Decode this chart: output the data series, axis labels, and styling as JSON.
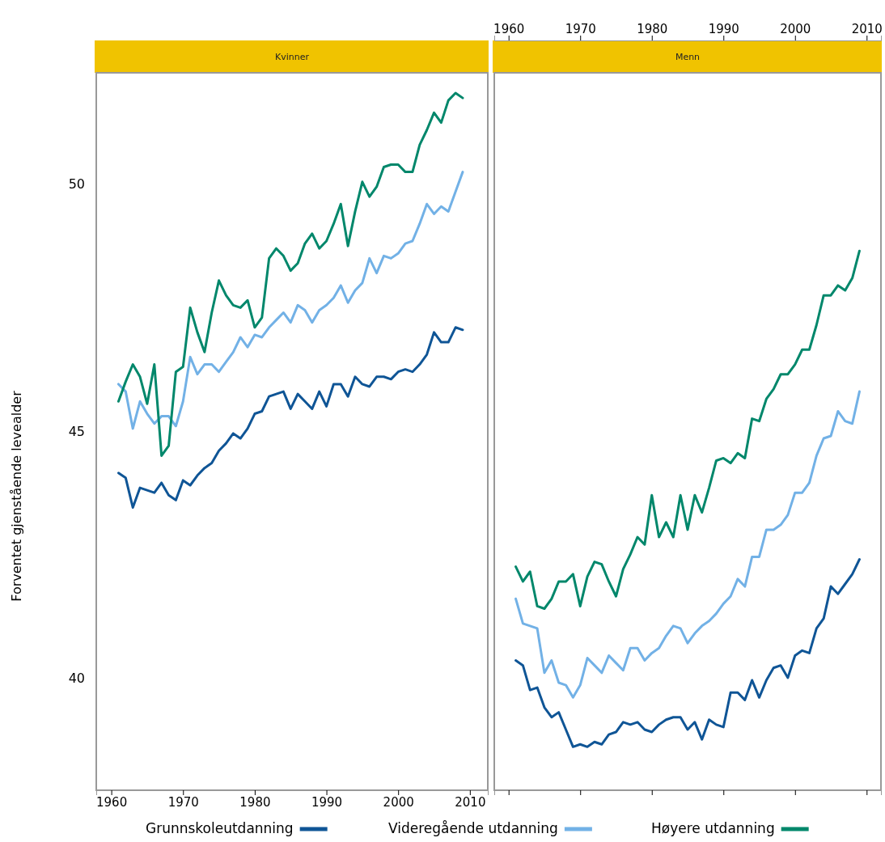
{
  "chart_data": [
    {
      "type": "line",
      "title": "Kvinner",
      "ylabel": "Forventet gjenstående levealder",
      "x": [
        1961,
        1962,
        1963,
        1964,
        1965,
        1966,
        1967,
        1968,
        1969,
        1970,
        1971,
        1972,
        1973,
        1974,
        1975,
        1976,
        1977,
        1978,
        1979,
        1980,
        1981,
        1982,
        1983,
        1984,
        1985,
        1986,
        1987,
        1988,
        1989,
        1990,
        1991,
        1992,
        1993,
        1994,
        1995,
        1996,
        1997,
        1998,
        1999,
        2000,
        2001,
        2002,
        2003,
        2004,
        2005,
        2006,
        2007,
        2008,
        2009
      ],
      "xlim": [
        1957.9,
        2012.5
      ],
      "xticks": [
        1960,
        1970,
        1980,
        1990,
        2000,
        2010
      ],
      "ylim": [
        37.72,
        52.26
      ],
      "yticks": [
        40,
        45,
        50
      ],
      "legend": "bottom",
      "line_style": "solid",
      "grid": false,
      "series": [
        {
          "name": "Grunnskoleutdanning",
          "color": "#0f5596",
          "values": [
            44.15,
            44.05,
            43.45,
            43.85,
            43.8,
            43.75,
            43.95,
            43.7,
            43.6,
            44.0,
            43.9,
            44.1,
            44.25,
            44.35,
            44.6,
            44.75,
            44.95,
            44.85,
            45.05,
            45.35,
            45.4,
            45.7,
            45.75,
            45.8,
            45.45,
            45.75,
            45.6,
            45.45,
            45.8,
            45.5,
            45.95,
            45.95,
            45.7,
            46.1,
            45.95,
            45.9,
            46.1,
            46.1,
            46.05,
            46.2,
            46.25,
            46.2,
            46.35,
            46.55,
            47.0,
            46.8,
            46.8,
            47.1,
            47.05
          ]
        },
        {
          "name": "Videregående utdanning",
          "color": "#72b1e6",
          "values": [
            45.95,
            45.8,
            45.05,
            45.6,
            45.35,
            45.15,
            45.3,
            45.3,
            45.1,
            45.6,
            46.5,
            46.15,
            46.35,
            46.35,
            46.2,
            46.4,
            46.6,
            46.9,
            46.7,
            46.95,
            46.9,
            47.1,
            47.25,
            47.4,
            47.2,
            47.55,
            47.45,
            47.2,
            47.45,
            47.55,
            47.7,
            47.95,
            47.6,
            47.85,
            48.0,
            48.5,
            48.2,
            48.55,
            48.5,
            48.6,
            48.8,
            48.85,
            49.2,
            49.6,
            49.4,
            49.55,
            49.45,
            49.85,
            50.25
          ]
        },
        {
          "name": "Høyere utdanning",
          "color": "#00876b",
          "values": [
            45.6,
            46.0,
            46.35,
            46.1,
            45.55,
            46.35,
            44.5,
            44.7,
            46.2,
            46.3,
            47.5,
            47.0,
            46.6,
            47.4,
            48.05,
            47.75,
            47.55,
            47.5,
            47.65,
            47.1,
            47.3,
            48.5,
            48.7,
            48.55,
            48.25,
            48.4,
            48.8,
            49.0,
            48.7,
            48.85,
            49.2,
            49.6,
            48.75,
            49.45,
            50.05,
            49.75,
            49.95,
            50.35,
            50.4,
            50.4,
            50.25,
            50.25,
            50.8,
            51.1,
            51.45,
            51.25,
            51.7,
            51.85,
            51.75
          ]
        }
      ]
    },
    {
      "type": "line",
      "title": "Menn",
      "x": [
        1961,
        1962,
        1963,
        1964,
        1965,
        1966,
        1967,
        1968,
        1969,
        1970,
        1971,
        1972,
        1973,
        1974,
        1975,
        1976,
        1977,
        1978,
        1979,
        1980,
        1981,
        1982,
        1983,
        1984,
        1985,
        1986,
        1987,
        1988,
        1989,
        1990,
        1991,
        1992,
        1993,
        1994,
        1995,
        1996,
        1997,
        1998,
        1999,
        2000,
        2001,
        2002,
        2003,
        2004,
        2005,
        2006,
        2007,
        2008,
        2009
      ],
      "xlim": [
        1958,
        2012
      ],
      "xticks": [
        1960,
        1970,
        1980,
        1990,
        2000,
        2010
      ],
      "ylim": [
        37.72,
        52.26
      ],
      "tick_labels": "x",
      "line_style": "solid",
      "grid": false,
      "series": [
        {
          "color": "#0f5596",
          "values": [
            40.35,
            40.25,
            39.75,
            39.8,
            39.4,
            39.2,
            39.3,
            38.95,
            38.6,
            38.65,
            38.6,
            38.7,
            38.65,
            38.85,
            38.9,
            39.1,
            39.05,
            39.1,
            38.95,
            38.9,
            39.05,
            39.15,
            39.2,
            39.2,
            38.95,
            39.1,
            38.75,
            39.15,
            39.05,
            39.0,
            39.7,
            39.7,
            39.55,
            39.95,
            39.6,
            39.95,
            40.2,
            40.25,
            40.0,
            40.45,
            40.55,
            40.5,
            41.0,
            41.2,
            41.85,
            41.7,
            41.9,
            42.1,
            42.4
          ]
        },
        {
          "color": "#72b1e6",
          "values": [
            41.6,
            41.1,
            41.05,
            41.0,
            40.1,
            40.35,
            39.9,
            39.85,
            39.6,
            39.85,
            40.4,
            40.25,
            40.1,
            40.45,
            40.3,
            40.15,
            40.6,
            40.6,
            40.35,
            40.5,
            40.6,
            40.85,
            41.05,
            41.0,
            40.7,
            40.9,
            41.05,
            41.15,
            41.3,
            41.5,
            41.65,
            42.0,
            41.85,
            42.45,
            42.45,
            43.0,
            43.0,
            43.1,
            43.3,
            43.75,
            43.75,
            43.95,
            44.5,
            44.85,
            44.9,
            45.4,
            45.2,
            45.15,
            45.8
          ]
        },
        {
          "color": "#00876b",
          "values": [
            42.25,
            41.95,
            42.15,
            41.45,
            41.4,
            41.6,
            41.95,
            41.95,
            42.1,
            41.45,
            42.05,
            42.35,
            42.3,
            41.95,
            41.65,
            42.2,
            42.5,
            42.85,
            42.7,
            43.7,
            42.85,
            43.15,
            42.85,
            43.7,
            43.0,
            43.7,
            43.35,
            43.85,
            44.4,
            44.45,
            44.35,
            44.55,
            44.45,
            45.25,
            45.2,
            45.65,
            45.85,
            46.15,
            46.15,
            46.35,
            46.65,
            46.65,
            47.15,
            47.75,
            47.75,
            47.95,
            47.85,
            48.1,
            48.65
          ]
        }
      ]
    }
  ]
}
